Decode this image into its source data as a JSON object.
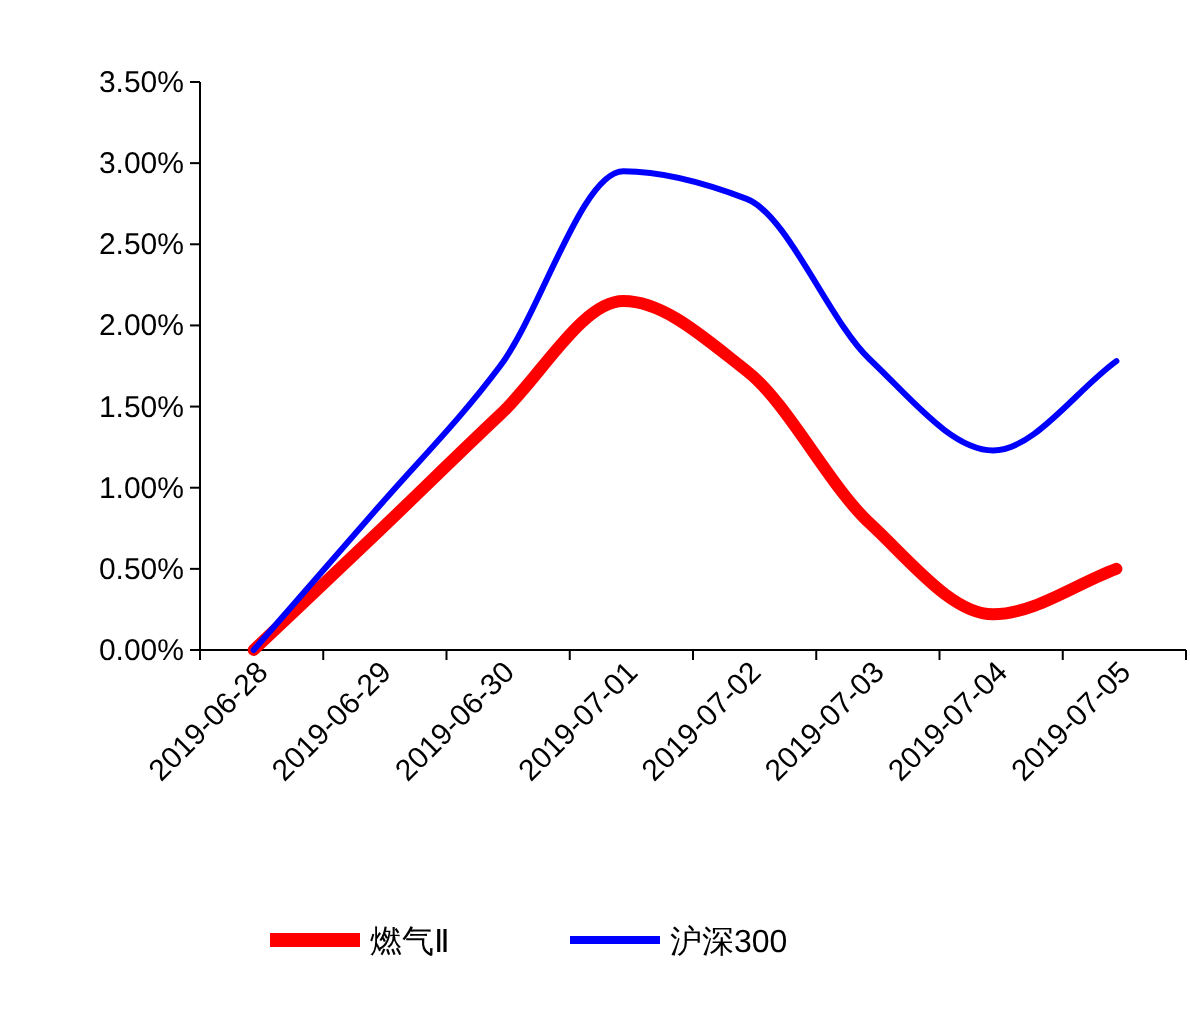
{
  "chart_data": {
    "type": "line",
    "categories": [
      "2019-06-28",
      "2019-06-29",
      "2019-06-30",
      "2019-07-01",
      "2019-07-02",
      "2019-07-03",
      "2019-07-04",
      "2019-07-05"
    ],
    "series": [
      {
        "name": "燃气Ⅱ",
        "color": "#ff0000",
        "values": [
          0,
          0.72,
          1.45,
          2.15,
          1.72,
          0.78,
          0.22,
          0.5
        ]
      },
      {
        "name": "沪深300",
        "color": "#0000ff",
        "values": [
          0,
          0.87,
          1.75,
          2.95,
          2.78,
          1.79,
          1.23,
          1.78
        ]
      }
    ],
    "ylim": [
      0,
      3.5
    ],
    "yticks": [
      {
        "value": 0,
        "label": "0.00%"
      },
      {
        "value": 0.5,
        "label": "0.50%"
      },
      {
        "value": 1,
        "label": "1.00%"
      },
      {
        "value": 1.5,
        "label": "1.50%"
      },
      {
        "value": 2,
        "label": "2.00%"
      },
      {
        "value": 2.5,
        "label": "2.50%"
      },
      {
        "value": 3,
        "label": "3.00%"
      },
      {
        "value": 3.5,
        "label": "3.50%"
      }
    ],
    "legend": "bottom",
    "grid": false
  }
}
